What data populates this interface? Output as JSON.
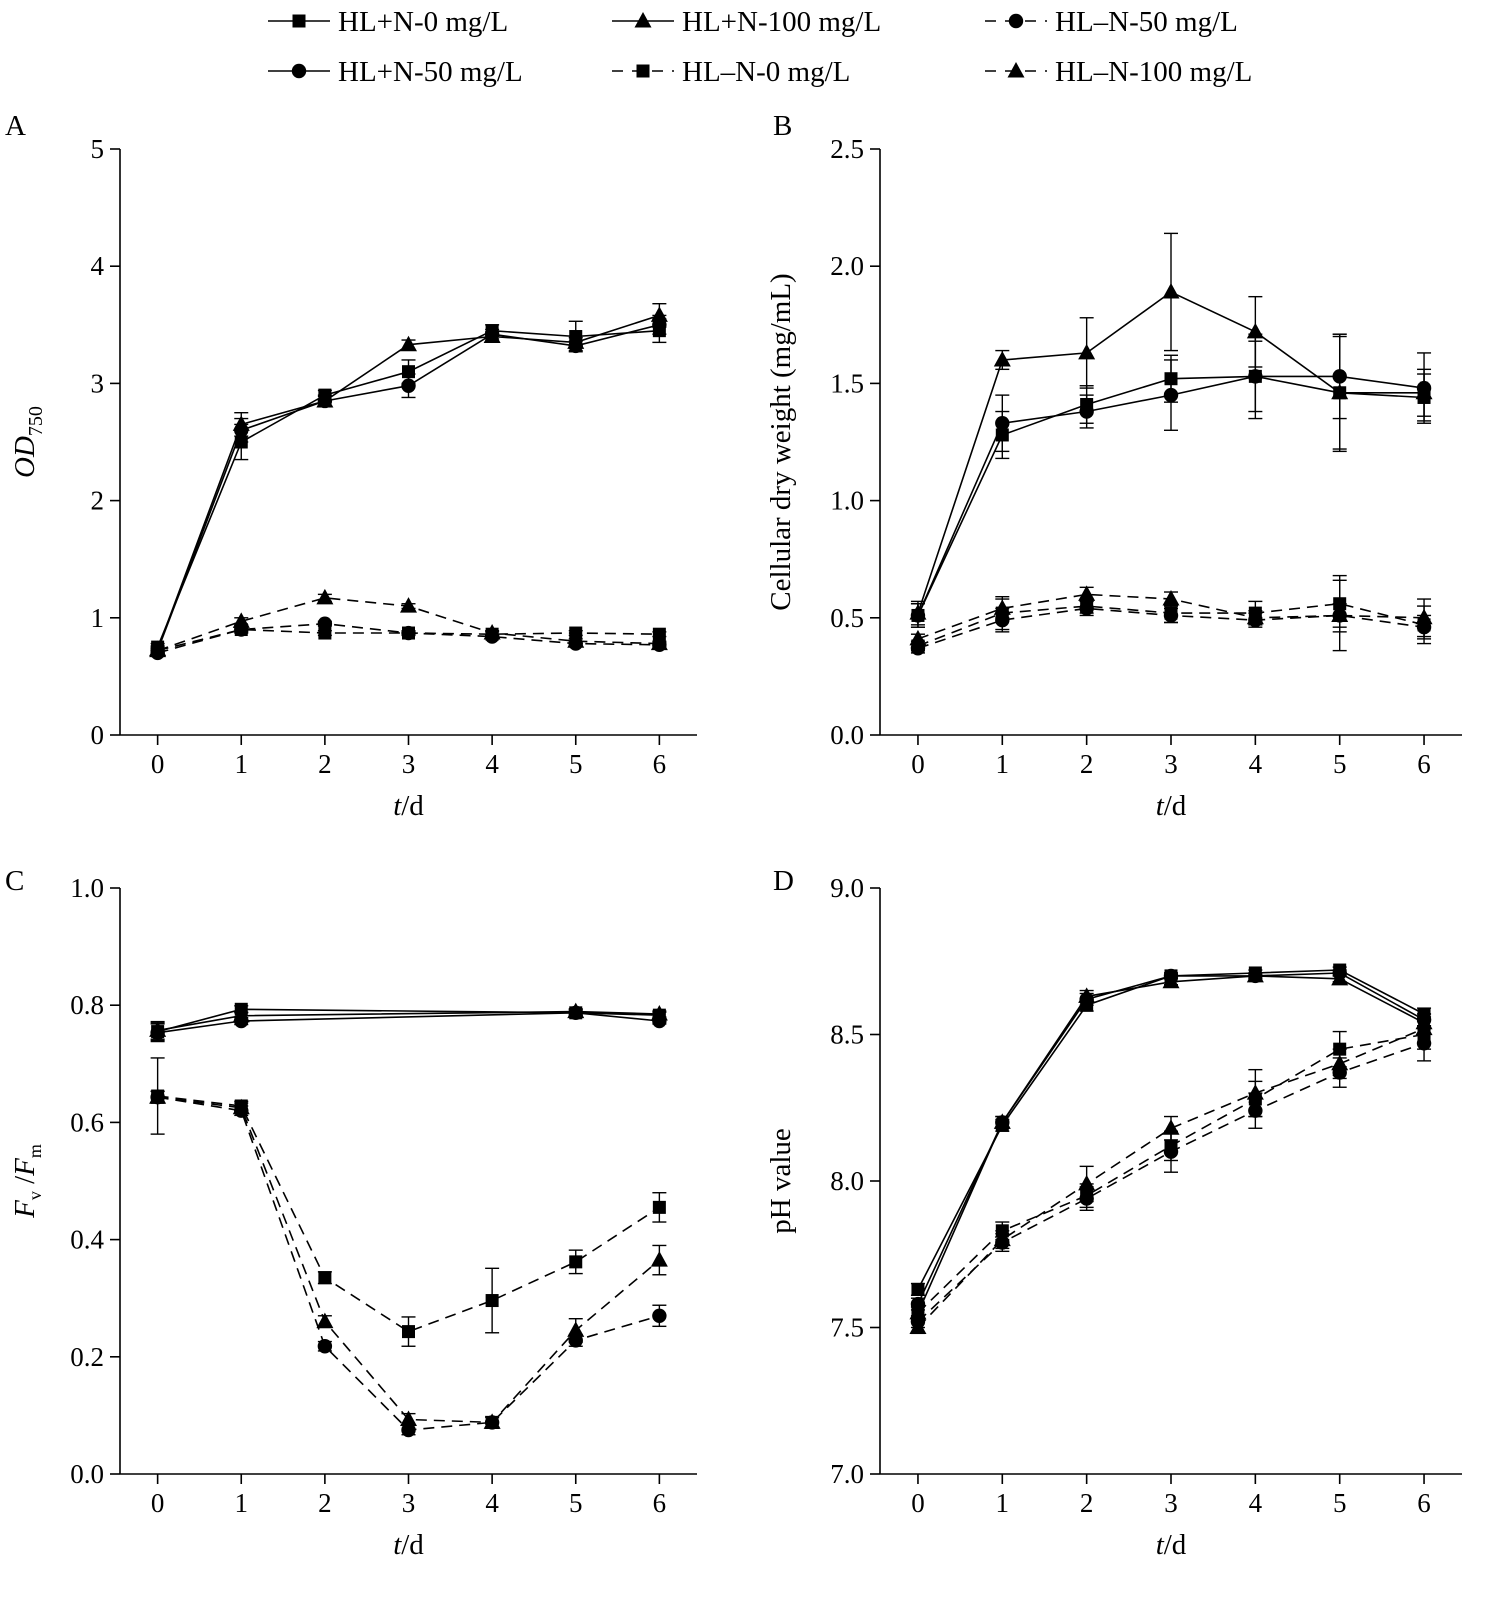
{
  "legend": {
    "items": [
      {
        "label": "HL+N-0 mg/L",
        "marker": "square",
        "dash": false
      },
      {
        "label": "HL+N-100 mg/L",
        "marker": "triangle",
        "dash": false
      },
      {
        "label": "HL–N-50 mg/L",
        "marker": "circle",
        "dash": true
      },
      {
        "label": "HL+N-50 mg/L",
        "marker": "circle",
        "dash": false
      },
      {
        "label": "HL–N-0 mg/L",
        "marker": "square",
        "dash": true
      },
      {
        "label": "HL–N-100 mg/L",
        "marker": "triangle",
        "dash": true
      }
    ]
  },
  "chart_data": [
    {
      "panel": "A",
      "type": "line",
      "xlabel": "t/d",
      "ylabel": "OD750",
      "x": [
        0,
        1,
        2,
        3,
        4,
        5,
        6
      ],
      "xlim": [
        -0.45,
        6.45
      ],
      "ylim": [
        0,
        5
      ],
      "yticks": [
        "0",
        "1",
        "2",
        "3",
        "4",
        "5"
      ],
      "grid": false,
      "legend_position": "top",
      "series": [
        {
          "name": "HL+N-0 mg/L",
          "marker": "square",
          "dash": false,
          "values": [
            0.75,
            2.5,
            2.9,
            3.1,
            3.45,
            3.4,
            3.45
          ],
          "err": [
            0.03,
            0.15,
            0.04,
            0.1,
            0.05,
            0.13,
            0.1
          ]
        },
        {
          "name": "HL+N-100 mg/L",
          "marker": "triangle",
          "dash": false,
          "values": [
            0.73,
            2.65,
            2.85,
            3.33,
            3.4,
            3.35,
            3.58
          ],
          "err": [
            0.03,
            0.1,
            0.04,
            0.04,
            0.04,
            0.04,
            0.1
          ]
        },
        {
          "name": "HL+N-50 mg/L",
          "marker": "circle",
          "dash": false,
          "values": [
            0.72,
            2.6,
            2.85,
            2.98,
            3.42,
            3.32,
            3.5
          ],
          "err": [
            0.03,
            0.1,
            0.05,
            0.1,
            0.04,
            0.04,
            0.08
          ]
        },
        {
          "name": "HL–N-0 mg/L",
          "marker": "square",
          "dash": true,
          "values": [
            0.72,
            0.9,
            0.87,
            0.87,
            0.86,
            0.87,
            0.86
          ],
          "err": [
            0.02,
            0.03,
            0.02,
            0.02,
            0.02,
            0.02,
            0.02
          ]
        },
        {
          "name": "HL–N-100 mg/L",
          "marker": "triangle",
          "dash": true,
          "values": [
            0.72,
            0.97,
            1.17,
            1.1,
            0.87,
            0.8,
            0.78
          ],
          "err": [
            0.02,
            0.03,
            0.03,
            0.02,
            0.02,
            0.02,
            0.02
          ]
        },
        {
          "name": "HL–N-50 mg/L",
          "marker": "circle",
          "dash": true,
          "values": [
            0.7,
            0.9,
            0.95,
            0.87,
            0.84,
            0.78,
            0.77
          ],
          "err": [
            0.02,
            0.02,
            0.02,
            0.02,
            0.02,
            0.02,
            0.02
          ]
        }
      ]
    },
    {
      "panel": "B",
      "type": "line",
      "xlabel": "t/d",
      "ylabel": "Cellular dry weight (mg/mL)",
      "x": [
        0,
        1,
        2,
        3,
        4,
        5,
        6
      ],
      "xlim": [
        -0.45,
        6.45
      ],
      "ylim": [
        0,
        2.5
      ],
      "yticks": [
        "0.0",
        "0.5",
        "1.0",
        "1.5",
        "2.0",
        "2.5"
      ],
      "grid": false,
      "series": [
        {
          "name": "HL+N-0 mg/L",
          "marker": "square",
          "dash": false,
          "values": [
            0.51,
            1.28,
            1.41,
            1.52,
            1.53,
            1.46,
            1.44
          ],
          "err": [
            0.05,
            0.1,
            0.08,
            0.1,
            0.18,
            0.25,
            0.1
          ]
        },
        {
          "name": "HL+N-100 mg/L",
          "marker": "triangle",
          "dash": false,
          "values": [
            0.52,
            1.6,
            1.63,
            1.89,
            1.72,
            1.46,
            1.46
          ],
          "err": [
            0.05,
            0.04,
            0.15,
            0.25,
            0.15,
            0.24,
            0.1
          ]
        },
        {
          "name": "HL+N-50 mg/L",
          "marker": "circle",
          "dash": false,
          "values": [
            0.51,
            1.33,
            1.38,
            1.45,
            1.53,
            1.53,
            1.48
          ],
          "err": [
            0.05,
            0.12,
            0.07,
            0.15,
            0.15,
            0.18,
            0.15
          ]
        },
        {
          "name": "HL–N-0 mg/L",
          "marker": "square",
          "dash": true,
          "values": [
            0.38,
            0.52,
            0.55,
            0.52,
            0.52,
            0.56,
            0.47
          ],
          "err": [
            0.02,
            0.07,
            0.03,
            0.04,
            0.05,
            0.12,
            0.08
          ]
        },
        {
          "name": "HL–N-100 mg/L",
          "marker": "triangle",
          "dash": true,
          "values": [
            0.41,
            0.54,
            0.6,
            0.58,
            0.5,
            0.51,
            0.5
          ],
          "err": [
            0.02,
            0.04,
            0.03,
            0.03,
            0.03,
            0.15,
            0.08
          ]
        },
        {
          "name": "HL–N-50 mg/L",
          "marker": "circle",
          "dash": true,
          "values": [
            0.37,
            0.49,
            0.54,
            0.51,
            0.49,
            0.51,
            0.46
          ],
          "err": [
            0.02,
            0.05,
            0.03,
            0.03,
            0.03,
            0.05,
            0.05
          ]
        }
      ]
    },
    {
      "panel": "C",
      "type": "line",
      "xlabel": "t/d",
      "ylabel": "Fv/Fm",
      "x": [
        0,
        1,
        2,
        3,
        4,
        5,
        6
      ],
      "xlim": [
        -0.45,
        6.45
      ],
      "ylim": [
        0,
        1.0
      ],
      "yticks": [
        "0.0",
        "0.2",
        "0.4",
        "0.6",
        "0.8",
        "1.0"
      ],
      "grid": false,
      "series": [
        {
          "name": "HL+N-0 mg/L",
          "marker": "square",
          "dash": false,
          "x": [
            0,
            1,
            5,
            6
          ],
          "values": [
            0.755,
            0.793,
            0.787,
            0.783
          ],
          "err": [
            0.015,
            0.006,
            0.005,
            0.005
          ]
        },
        {
          "name": "HL+N-100 mg/L",
          "marker": "triangle",
          "dash": false,
          "x": [
            0,
            1,
            5,
            6
          ],
          "values": [
            0.757,
            0.782,
            0.789,
            0.785
          ],
          "err": [
            0.015,
            0.006,
            0.005,
            0.005
          ]
        },
        {
          "name": "HL+N-50 mg/L",
          "marker": "circle",
          "dash": false,
          "x": [
            0,
            1,
            5,
            6
          ],
          "values": [
            0.753,
            0.773,
            0.787,
            0.773
          ],
          "err": [
            0.015,
            0.006,
            0.005,
            0.005
          ]
        },
        {
          "name": "HL–N-0 mg/L",
          "marker": "square",
          "dash": true,
          "values": [
            0.645,
            0.628,
            0.335,
            0.243,
            0.296,
            0.362,
            0.455
          ],
          "err": [
            0.065,
            0.008,
            0.01,
            0.025,
            0.055,
            0.02,
            0.025
          ]
        },
        {
          "name": "HL–N-100 mg/L",
          "marker": "triangle",
          "dash": true,
          "values": [
            0.643,
            0.625,
            0.26,
            0.093,
            0.088,
            0.245,
            0.365
          ],
          "err": [
            0.01,
            0.008,
            0.01,
            0.01,
            0.01,
            0.02,
            0.025
          ]
        },
        {
          "name": "HL–N-50 mg/L",
          "marker": "circle",
          "dash": true,
          "values": [
            0.643,
            0.62,
            0.218,
            0.075,
            0.088,
            0.228,
            0.27
          ],
          "err": [
            0.01,
            0.008,
            0.008,
            0.008,
            0.008,
            0.01,
            0.018
          ]
        }
      ]
    },
    {
      "panel": "D",
      "type": "line",
      "xlabel": "t/d",
      "ylabel": "pH value",
      "x": [
        0,
        1,
        2,
        3,
        4,
        5,
        6
      ],
      "xlim": [
        -0.45,
        6.45
      ],
      "ylim": [
        7.0,
        9.0
      ],
      "yticks": [
        "7.0",
        "7.5",
        "8.0",
        "8.5",
        "9.0"
      ],
      "grid": false,
      "series": [
        {
          "name": "HL+N-0 mg/L",
          "marker": "square",
          "dash": false,
          "values": [
            7.63,
            8.19,
            8.6,
            8.7,
            8.71,
            8.72,
            8.57
          ],
          "err": [
            0.02,
            0.02,
            0.02,
            0.01,
            0.01,
            0.01,
            0.02
          ]
        },
        {
          "name": "HL+N-100 mg/L",
          "marker": "triangle",
          "dash": false,
          "values": [
            7.55,
            8.2,
            8.63,
            8.68,
            8.7,
            8.69,
            8.54
          ],
          "err": [
            0.02,
            0.02,
            0.02,
            0.01,
            0.01,
            0.01,
            0.02
          ]
        },
        {
          "name": "HL+N-50 mg/L",
          "marker": "circle",
          "dash": false,
          "values": [
            7.58,
            8.2,
            8.62,
            8.7,
            8.7,
            8.71,
            8.55
          ],
          "err": [
            0.02,
            0.02,
            0.02,
            0.01,
            0.01,
            0.01,
            0.02
          ]
        },
        {
          "name": "HL–N-0 mg/L",
          "marker": "square",
          "dash": true,
          "values": [
            7.55,
            7.83,
            7.95,
            8.12,
            8.28,
            8.45,
            8.5
          ],
          "err": [
            0.02,
            0.03,
            0.04,
            0.05,
            0.06,
            0.06,
            0.05
          ]
        },
        {
          "name": "HL–N-100 mg/L",
          "marker": "triangle",
          "dash": true,
          "values": [
            7.5,
            7.8,
            7.99,
            8.18,
            8.3,
            8.4,
            8.52
          ],
          "err": [
            0.02,
            0.03,
            0.06,
            0.04,
            0.08,
            0.05,
            0.05
          ]
        },
        {
          "name": "HL–N-50 mg/L",
          "marker": "circle",
          "dash": true,
          "values": [
            7.52,
            7.79,
            7.94,
            8.1,
            8.24,
            8.37,
            8.47
          ],
          "err": [
            0.02,
            0.03,
            0.04,
            0.07,
            0.06,
            0.05,
            0.06
          ]
        }
      ]
    }
  ]
}
